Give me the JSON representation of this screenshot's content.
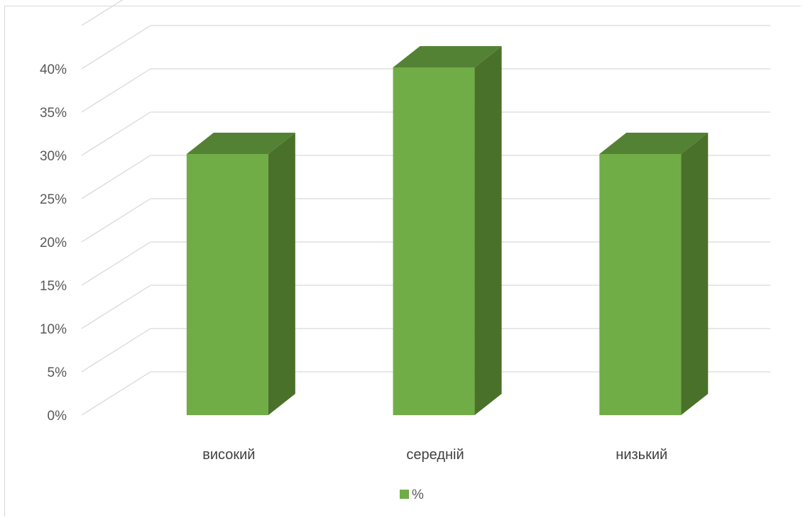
{
  "chart_data": {
    "type": "bar",
    "style": "3d-column",
    "categories": [
      "високий",
      "середній",
      "низький"
    ],
    "series": [
      {
        "name": "%",
        "values": [
          30,
          40,
          30
        ]
      }
    ],
    "y_ticks": [
      "0%",
      "5%",
      "10%",
      "15%",
      "20%",
      "25%",
      "30%",
      "35%",
      "40%"
    ],
    "ylim": [
      0,
      45
    ],
    "grid": true,
    "legend": "bottom",
    "colors": {
      "front": "#70ad47",
      "side": "#4a7129",
      "top": "#548235",
      "grid": "#d9d9d9"
    }
  }
}
